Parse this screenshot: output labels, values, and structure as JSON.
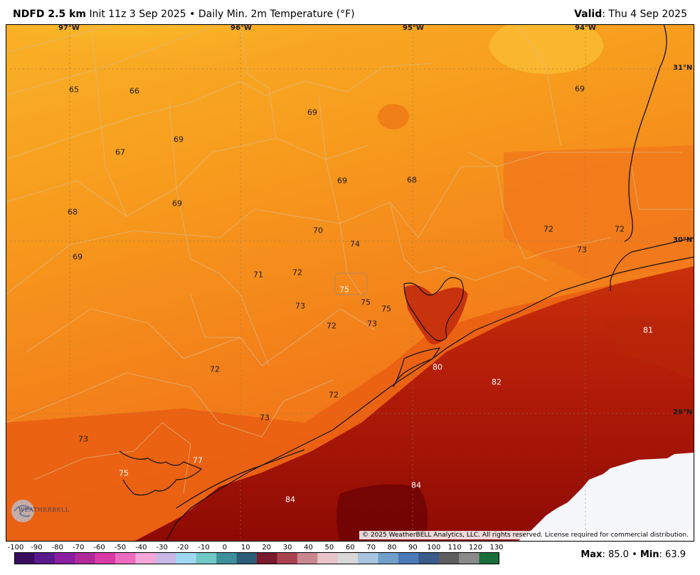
{
  "header": {
    "product": "NDFD 2.5 km",
    "init": "Init 11z 3 Sep 2025",
    "separator": "•",
    "field": "Daily Min. 2m Temperature (°F)",
    "valid_label": "Valid",
    "valid_value": ": Thu 4 Sep 2025"
  },
  "map": {
    "longitude_labels": [
      "97°W",
      "96°W",
      "95°W",
      "94°W"
    ],
    "latitude_labels": [
      "31°N",
      "30°N",
      "29°N"
    ],
    "station_values": [
      {
        "value": "65",
        "tone": "dark"
      },
      {
        "value": "66",
        "tone": "dark"
      },
      {
        "value": "69",
        "tone": "dark"
      },
      {
        "value": "69",
        "tone": "dark"
      },
      {
        "value": "67",
        "tone": "dark"
      },
      {
        "value": "69",
        "tone": "dark"
      },
      {
        "value": "69",
        "tone": "dark"
      },
      {
        "value": "68",
        "tone": "dark"
      },
      {
        "value": "69",
        "tone": "dark"
      },
      {
        "value": "68",
        "tone": "dark"
      },
      {
        "value": "69",
        "tone": "dark"
      },
      {
        "value": "70",
        "tone": "dark"
      },
      {
        "value": "74",
        "tone": "dark"
      },
      {
        "value": "72",
        "tone": "dark"
      },
      {
        "value": "72",
        "tone": "dark"
      },
      {
        "value": "73",
        "tone": "dark"
      },
      {
        "value": "71",
        "tone": "dark"
      },
      {
        "value": "72",
        "tone": "dark"
      },
      {
        "value": "75",
        "tone": "light"
      },
      {
        "value": "75",
        "tone": "dark"
      },
      {
        "value": "75",
        "tone": "dark"
      },
      {
        "value": "73",
        "tone": "dark"
      },
      {
        "value": "72",
        "tone": "dark"
      },
      {
        "value": "73",
        "tone": "dark"
      },
      {
        "value": "81",
        "tone": "light"
      },
      {
        "value": "80",
        "tone": "light"
      },
      {
        "value": "82",
        "tone": "light"
      },
      {
        "value": "72",
        "tone": "dark"
      },
      {
        "value": "72",
        "tone": "dark"
      },
      {
        "value": "73",
        "tone": "dark"
      },
      {
        "value": "73",
        "tone": "dark"
      },
      {
        "value": "77",
        "tone": "light"
      },
      {
        "value": "75",
        "tone": "light"
      },
      {
        "value": "84",
        "tone": "light"
      },
      {
        "value": "84",
        "tone": "light"
      }
    ],
    "copyright": "© 2025 WeatherBELL Analytics, LLC. All rights reserved. License required for commercial distribution.",
    "logo_text": "WEATHERBELL"
  },
  "colorbar": {
    "ticks": [
      "-100",
      "-90",
      "-80",
      "-70",
      "-60",
      "-50",
      "-40",
      "-30",
      "-20",
      "-10",
      "0",
      "10",
      "20",
      "30",
      "40",
      "50",
      "60",
      "70",
      "80",
      "90",
      "100",
      "110",
      "120",
      "130"
    ],
    "colors": [
      "#3a0c5e",
      "#5a1a8c",
      "#8a1fa0",
      "#b02a9a",
      "#d93aa8",
      "#ec6cc0",
      "#f4a6d8",
      "#c9b7e6",
      "#9fd8f0",
      "#6fc9c4",
      "#3e8f9c",
      "#2b5e78",
      "#7a1a2e",
      "#a8424f",
      "#c98890",
      "#e8c4c8",
      "#d8d8d8",
      "#a8c4de",
      "#6fa0c8",
      "#4a7ab8",
      "#3a5a8c",
      "#5e5e5e",
      "#8a8a8a",
      "#1a6e3a"
    ]
  },
  "stats": {
    "max_label": "Max",
    "max_value": ": 85.0",
    "separator": "•",
    "min_label": "Min",
    "min_value": ": 63.9"
  }
}
